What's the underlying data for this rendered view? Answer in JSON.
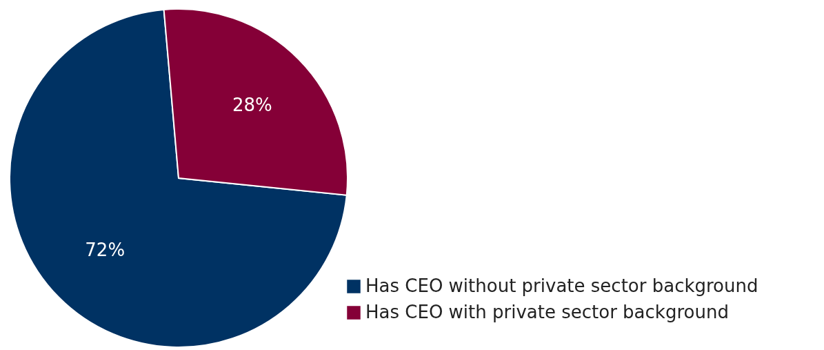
{
  "chart_data": {
    "type": "pie",
    "categories": [
      "Has CEO without private sector background",
      "Has CEO with private sector background"
    ],
    "values": [
      72,
      28
    ],
    "colors": [
      "#003263",
      "#850037"
    ],
    "value_labels": [
      "72%",
      "28%"
    ],
    "legend": "bottom right"
  }
}
